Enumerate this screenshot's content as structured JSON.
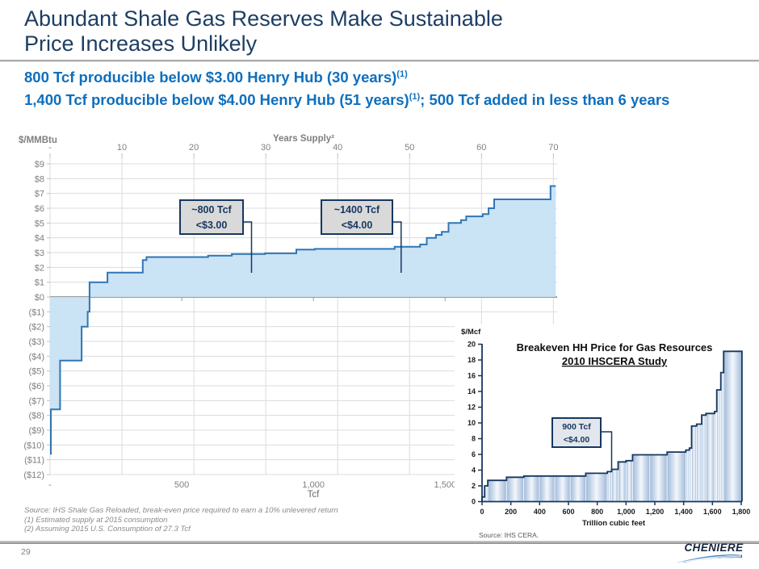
{
  "header": {
    "title_line1": "Abundant Shale Gas Reserves Make Sustainable",
    "title_line2": "Price Increases Unlikely",
    "subtitle1": {
      "text": "800 Tcf producible below $3.00 Henry Hub (30 years)",
      "sup": "(1)"
    },
    "subtitle2": {
      "part1": "1,400 Tcf producible below $4.00 Henry Hub (51 years)",
      "sup": "(1)",
      "part2": "; 500 Tcf added in less than 6 years"
    }
  },
  "footer": {
    "source_line": "Source: IHS Shale Gas Reloaded, break-even price required to earn a 10% unlevered return",
    "note1": "(1) Estimated supply at 2015 consumption",
    "note2": "(2) Assuming 2015 U.S. Consumption of 27.3 Tcf",
    "page_number": "29",
    "logo_text": "CHENIERE"
  },
  "chart_data": [
    {
      "type": "area",
      "name": "shale-gas-supply-cost-curve",
      "top_axis": {
        "label": "Years Supply²",
        "ticks": [
          {
            "years": 0,
            "label": "-"
          },
          {
            "years": 10,
            "label": "10"
          },
          {
            "years": 20,
            "label": "20"
          },
          {
            "years": 30,
            "label": "30"
          },
          {
            "years": 40,
            "label": "40"
          },
          {
            "years": 50,
            "label": "50"
          },
          {
            "years": 60,
            "label": "60"
          },
          {
            "years": 70,
            "label": "70"
          }
        ]
      },
      "y_axis": {
        "label": "$/MMBtu",
        "ticks": [
          {
            "value": 9,
            "label": "$9"
          },
          {
            "value": 8,
            "label": "$8"
          },
          {
            "value": 7,
            "label": "$7"
          },
          {
            "value": 6,
            "label": "$6"
          },
          {
            "value": 5,
            "label": "$5"
          },
          {
            "value": 4,
            "label": "$4"
          },
          {
            "value": 3,
            "label": "$3"
          },
          {
            "value": 2,
            "label": "$2"
          },
          {
            "value": 1,
            "label": "$1"
          },
          {
            "value": 0,
            "label": "$0"
          },
          {
            "value": -1,
            "label": "($1)"
          },
          {
            "value": -2,
            "label": "($2)"
          },
          {
            "value": -3,
            "label": "($3)"
          },
          {
            "value": -4,
            "label": "($4)"
          },
          {
            "value": -5,
            "label": "($5)"
          },
          {
            "value": -6,
            "label": "($6)"
          },
          {
            "value": -7,
            "label": "($7)"
          },
          {
            "value": -8,
            "label": "($8)"
          },
          {
            "value": -9,
            "label": "($9)"
          },
          {
            "value": -10,
            "label": "($10)"
          },
          {
            "value": -11,
            "label": "($11)"
          },
          {
            "value": -12,
            "label": "($12)"
          }
        ]
      },
      "x_axis": {
        "label": "Tcf",
        "ticks": [
          {
            "value": 0,
            "label": "-"
          },
          {
            "value": 500,
            "label": "500"
          },
          {
            "value": 1000,
            "label": "1,000"
          },
          {
            "value": 1500,
            "label": "1,500"
          }
        ]
      },
      "xlim": [
        0,
        1925
      ],
      "ylim": [
        -12,
        9
      ],
      "series": [
        {
          "name": "break-even price",
          "points": [
            [
              0,
              -10.6
            ],
            [
              3,
              -10.6
            ],
            [
              3,
              -7.6
            ],
            [
              38,
              -7.6
            ],
            [
              38,
              -4.3
            ],
            [
              120,
              -4.3
            ],
            [
              120,
              -2.0
            ],
            [
              143,
              -2.0
            ],
            [
              143,
              -1.0
            ],
            [
              150,
              -1.0
            ],
            [
              150,
              1.0
            ],
            [
              218,
              1.0
            ],
            [
              218,
              1.65
            ],
            [
              352,
              1.65
            ],
            [
              352,
              2.5
            ],
            [
              366,
              2.5
            ],
            [
              366,
              2.7
            ],
            [
              600,
              2.7
            ],
            [
              600,
              2.8
            ],
            [
              690,
              2.8
            ],
            [
              690,
              2.9
            ],
            [
              816,
              2.9
            ],
            [
              816,
              2.95
            ],
            [
              935,
              2.95
            ],
            [
              935,
              3.2
            ],
            [
              1005,
              3.2
            ],
            [
              1005,
              3.25
            ],
            [
              1308,
              3.25
            ],
            [
              1308,
              3.4
            ],
            [
              1405,
              3.4
            ],
            [
              1405,
              3.55
            ],
            [
              1430,
              3.55
            ],
            [
              1430,
              4.0
            ],
            [
              1465,
              4.0
            ],
            [
              1465,
              4.2
            ],
            [
              1487,
              4.2
            ],
            [
              1487,
              4.4
            ],
            [
              1513,
              4.4
            ],
            [
              1513,
              5.0
            ],
            [
              1560,
              5.0
            ],
            [
              1560,
              5.2
            ],
            [
              1580,
              5.2
            ],
            [
              1580,
              5.45
            ],
            [
              1643,
              5.45
            ],
            [
              1643,
              5.6
            ],
            [
              1665,
              5.6
            ],
            [
              1665,
              6.0
            ],
            [
              1686,
              6.0
            ],
            [
              1686,
              6.6
            ],
            [
              1900,
              6.6
            ],
            [
              1900,
              7.5
            ],
            [
              1920,
              7.5
            ]
          ]
        }
      ],
      "annotations": [
        {
          "line1": "~800 Tcf",
          "line2": "<$3.00",
          "points_to_tcf": 765
        },
        {
          "line1": "~1400 Tcf",
          "line2": "<$4.00",
          "points_to_tcf": 1333
        }
      ],
      "colors": {
        "line": "#2f76b5",
        "fill": "#c7e2f4",
        "grid": "#dcdcdc",
        "zero_line": "#9b9b9b",
        "callout": "#17375e"
      }
    },
    {
      "type": "area",
      "name": "ihs-cera-breakeven-curve",
      "title_line1": "Breakeven HH Price for Gas Resources",
      "title_line2": " 2010 IHSCERA Study ",
      "source": "Source: IHS CERA.",
      "y_axis": {
        "label": "$/Mcf",
        "ticks": [
          {
            "value": 0,
            "label": "0"
          },
          {
            "value": 2,
            "label": "2"
          },
          {
            "value": 4,
            "label": "4"
          },
          {
            "value": 6,
            "label": "6"
          },
          {
            "value": 8,
            "label": "8"
          },
          {
            "value": 10,
            "label": "10"
          },
          {
            "value": 12,
            "label": "12"
          },
          {
            "value": 14,
            "label": "14"
          },
          {
            "value": 16,
            "label": "16"
          },
          {
            "value": 18,
            "label": "18"
          },
          {
            "value": 20,
            "label": "20"
          }
        ]
      },
      "x_axis": {
        "label": "Trillion cubic feet",
        "ticks": [
          {
            "value": 0,
            "label": "0"
          },
          {
            "value": 200,
            "label": "200"
          },
          {
            "value": 400,
            "label": "400"
          },
          {
            "value": 600,
            "label": "600"
          },
          {
            "value": 800,
            "label": "800"
          },
          {
            "value": 1000,
            "label": "1,000"
          },
          {
            "value": 1200,
            "label": "1,200"
          },
          {
            "value": 1400,
            "label": "1,400"
          },
          {
            "value": 1600,
            "label": "1,600"
          },
          {
            "value": 1800,
            "label": "1,800"
          }
        ]
      },
      "xlim": [
        0,
        1810
      ],
      "ylim": [
        0,
        20
      ],
      "series": [
        {
          "name": "breakeven price",
          "points": [
            [
              0,
              0.6
            ],
            [
              18,
              0.6
            ],
            [
              18,
              2.0
            ],
            [
              40,
              2.0
            ],
            [
              40,
              2.7
            ],
            [
              170,
              2.7
            ],
            [
              170,
              3.1
            ],
            [
              290,
              3.1
            ],
            [
              290,
              3.25
            ],
            [
              720,
              3.25
            ],
            [
              720,
              3.6
            ],
            [
              870,
              3.6
            ],
            [
              870,
              3.8
            ],
            [
              900,
              3.8
            ],
            [
              900,
              4.1
            ],
            [
              945,
              4.1
            ],
            [
              945,
              5.05
            ],
            [
              1000,
              5.05
            ],
            [
              1000,
              5.2
            ],
            [
              1045,
              5.2
            ],
            [
              1045,
              5.95
            ],
            [
              1285,
              5.95
            ],
            [
              1285,
              6.3
            ],
            [
              1415,
              6.3
            ],
            [
              1415,
              6.55
            ],
            [
              1440,
              6.55
            ],
            [
              1440,
              6.8
            ],
            [
              1455,
              6.8
            ],
            [
              1455,
              9.6
            ],
            [
              1490,
              9.6
            ],
            [
              1490,
              9.85
            ],
            [
              1525,
              9.85
            ],
            [
              1525,
              11.0
            ],
            [
              1555,
              11.0
            ],
            [
              1555,
              11.2
            ],
            [
              1615,
              11.2
            ],
            [
              1615,
              11.45
            ],
            [
              1630,
              11.45
            ],
            [
              1630,
              14.2
            ],
            [
              1658,
              14.2
            ],
            [
              1658,
              16.4
            ],
            [
              1678,
              16.4
            ],
            [
              1678,
              19.1
            ],
            [
              1805,
              19.1
            ]
          ]
        }
      ],
      "annotation": {
        "line1": "900 Tcf",
        "line2": "<$4.00",
        "points_to_tcf": 900
      },
      "colors": {
        "line": "#17375e",
        "axis": "#17375e",
        "band_edge": "#9fb9d9",
        "band_center": "#f3f7fc"
      }
    }
  ]
}
